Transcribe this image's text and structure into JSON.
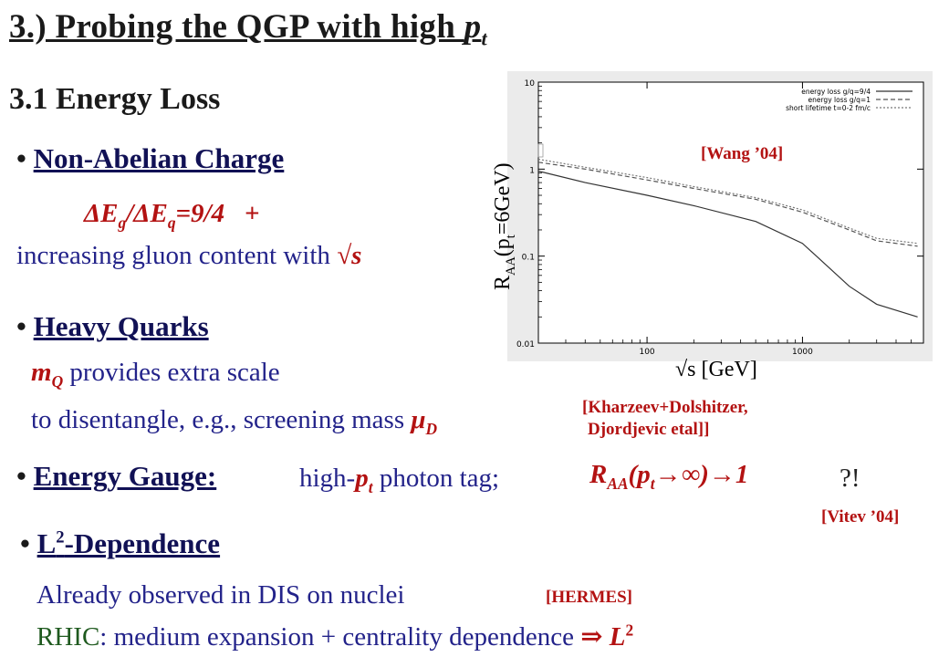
{
  "slide": {
    "title_main": "3.) Probing the QGP with high ",
    "title_p": "p",
    "title_sub": "t",
    "section": "3.1 Energy Loss",
    "b1_head": "Non-Abelian Charge",
    "b1_formula_a": "ΔE",
    "b1_formula_g": "g",
    "b1_formula_b": "/ΔE",
    "b1_formula_q": "q",
    "b1_formula_c": "=9/4",
    "b1_plus": "+",
    "b1_line2": "increasing gluon content with ",
    "b1_sqrt": "√s",
    "b2_head": "Heavy Quarks",
    "b2_m": "m",
    "b2_msub": "Q",
    "b2_line1": " provides extra scale",
    "b2_line2": "to disentangle, e.g., screening mass ",
    "b2_mu": "μ",
    "b2_musub": "D",
    "ref_kharzeev1": "[Kharzeev+Dolshitzer,",
    "ref_kharzeev2": "Djordjevic etal]]",
    "b3_head": "Energy Gauge:",
    "b3_text": "high-",
    "b3_p": "p",
    "b3_psub": "t",
    "b3_text2": " photon tag;",
    "b3_R": "R",
    "b3_Rsub": "AA",
    "b3_expr": "(p",
    "b3_exprsub": "t",
    "b3_expr2": "→∞)→1",
    "b3_q": "?!",
    "ref_vitev": "[Vitev ’04]",
    "b4_head_L": "L",
    "b4_head_sup": "2",
    "b4_head_rest": "-Dependence",
    "b4_line1": "Already observed in DIS on nuclei",
    "ref_hermes": "[HERMES]",
    "b4_rhic": "RHIC",
    "b4_line2": ":  medium expansion + centrality dependence ",
    "b4_arrow": "⇒",
    "b4_L": "L",
    "b4_Lsup": "2"
  },
  "chart_data": {
    "type": "line",
    "x_scale": "log",
    "y_scale": "log",
    "xlim": [
      20,
      6000
    ],
    "ylim": [
      0.01,
      10
    ],
    "xlabel": "√s [GeV]",
    "ylabel": "R_AA(p_t=6GeV)",
    "ylabel_main": "R",
    "ylabel_sub1": "AA",
    "ylabel_mid": "(p",
    "ylabel_sub2": "t",
    "ylabel_end": "=6GeV)",
    "x_ticks": [
      "100",
      "1000"
    ],
    "y_ticks": [
      "10",
      "1",
      "0.1",
      "0.01"
    ],
    "annotation": "[Wang ’04]",
    "legend_position": "top-right",
    "series": [
      {
        "name": "energy loss g/q=9/4",
        "style": "solid",
        "x": [
          20,
          40,
          100,
          200,
          500,
          1000,
          2000,
          3000,
          5500
        ],
        "y": [
          0.95,
          0.7,
          0.5,
          0.38,
          0.25,
          0.14,
          0.045,
          0.028,
          0.02
        ]
      },
      {
        "name": "energy loss g/q=1",
        "style": "dashed",
        "x": [
          20,
          40,
          100,
          200,
          500,
          1000,
          2000,
          3000,
          5500
        ],
        "y": [
          1.2,
          1.0,
          0.75,
          0.6,
          0.45,
          0.32,
          0.2,
          0.15,
          0.13
        ]
      },
      {
        "name": "short lifetime t=0-2 fm/c",
        "style": "dotted",
        "x": [
          20,
          40,
          100,
          200,
          500,
          1000,
          2000,
          3000,
          5500
        ],
        "y": [
          1.3,
          1.05,
          0.8,
          0.63,
          0.47,
          0.34,
          0.21,
          0.16,
          0.14
        ]
      }
    ],
    "colors": {
      "solid": "#333333",
      "dashed": "#555555",
      "dotted": "#777777"
    }
  }
}
